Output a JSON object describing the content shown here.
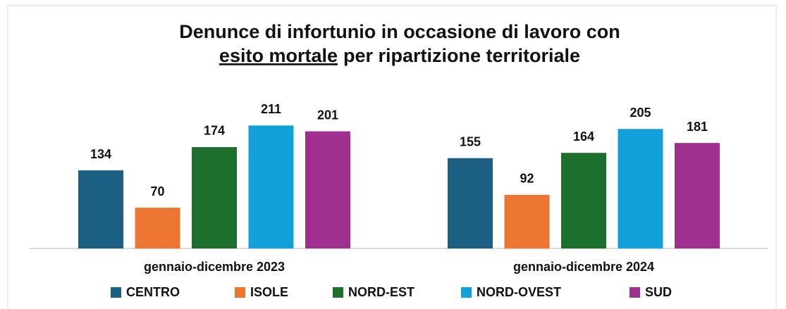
{
  "chart_data": {
    "type": "bar",
    "title": [
      "Denunce di infortunio in occasione di lavoro con",
      "esito mortale",
      "per ripartizione territoriale"
    ],
    "categories": [
      "gennaio-dicembre 2023",
      "gennaio-dicembre 2024"
    ],
    "series": [
      {
        "name": "CENTRO",
        "color": "#1b5f83",
        "values": [
          134,
          155
        ]
      },
      {
        "name": "ISOLE",
        "color": "#ec7532",
        "values": [
          70,
          92
        ]
      },
      {
        "name": "NORD-EST",
        "color": "#1c6f2c",
        "values": [
          174,
          164
        ]
      },
      {
        "name": "NORD-OVEST",
        "color": "#12a0d8",
        "values": [
          211,
          205
        ]
      },
      {
        "name": "SUD",
        "color": "#a0308f",
        "values": [
          201,
          181
        ]
      }
    ],
    "ylim": [
      0,
      250
    ],
    "legend": "bottom"
  }
}
